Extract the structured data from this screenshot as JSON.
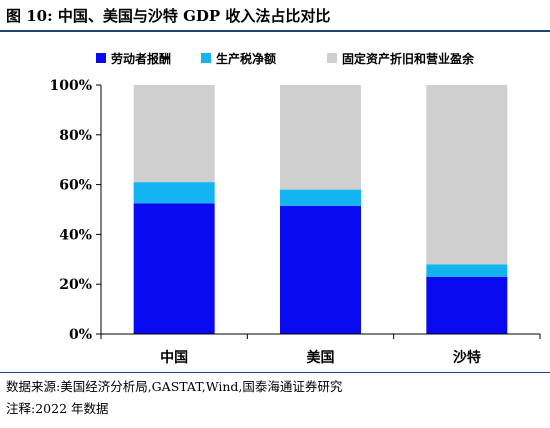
{
  "figure": {
    "title": "图 10:  中国、美国与沙特 GDP 收入法占比对比",
    "source": "数据来源:美国经济分析局,GASTAT,Wind,国泰海通证券研究",
    "note": "注释:2022 年数据"
  },
  "chart_data": {
    "type": "bar",
    "stacked": true,
    "categories": [
      "中国",
      "美国",
      "沙特"
    ],
    "series": [
      {
        "name": "劳动者报酬",
        "color": "#0a0af0",
        "values": [
          52.5,
          51.5,
          23.0
        ]
      },
      {
        "name": "生产税净额",
        "color": "#14b4f0",
        "values": [
          8.5,
          6.5,
          5.0
        ]
      },
      {
        "name": "固定资产折旧和营业盈余",
        "color": "#cfcfcf",
        "values": [
          39.0,
          42.0,
          72.0
        ]
      }
    ],
    "ylim": [
      0,
      100
    ],
    "yticks": [
      0,
      20,
      40,
      60,
      80,
      100
    ],
    "ytick_labels": [
      "0%",
      "20%",
      "40%",
      "60%",
      "80%",
      "100%"
    ],
    "grid": false,
    "legend_position": "top"
  }
}
